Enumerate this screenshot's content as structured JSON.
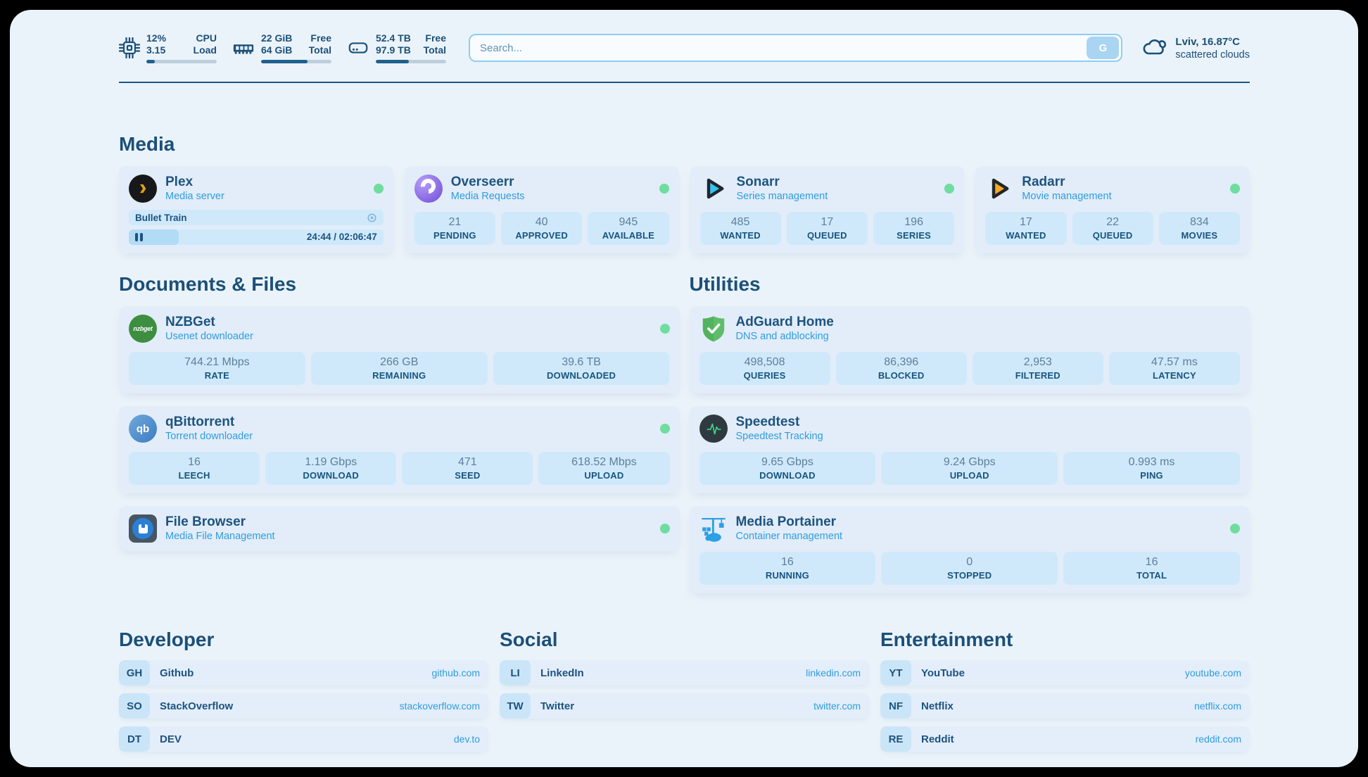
{
  "colors": {
    "accent": "#2f9ce0",
    "green": "#6fdd9f",
    "navy": "#1b5078"
  },
  "topbar": {
    "cpu": {
      "value_top": "12%",
      "value_bottom": "3.15",
      "label_top": "CPU",
      "label_bottom": "Load",
      "progress_pct": 12
    },
    "ram": {
      "value_top": "22 GiB",
      "value_bottom": "64 GiB",
      "label_top": "Free",
      "label_bottom": "Total",
      "progress_pct": 66
    },
    "disk": {
      "value_top": "52.4 TB",
      "value_bottom": "97.9 TB",
      "label_top": "Free",
      "label_bottom": "Total",
      "progress_pct": 47
    },
    "search": {
      "placeholder": "Search...",
      "button_label": "G"
    },
    "weather": {
      "location_temp": "Lviv, 16.87°C",
      "condition": "scattered clouds"
    }
  },
  "media": {
    "title": "Media",
    "plex": {
      "name": "Plex",
      "desc": "Media server",
      "now_playing": "Bullet Train",
      "time": "24:44 / 02:06:47",
      "progress_pct": 19.5
    },
    "overseerr": {
      "name": "Overseerr",
      "desc": "Media Requests",
      "stats": [
        {
          "value": "21",
          "label": "PENDING"
        },
        {
          "value": "40",
          "label": "APPROVED"
        },
        {
          "value": "945",
          "label": "AVAILABLE"
        }
      ]
    },
    "sonarr": {
      "name": "Sonarr",
      "desc": "Series management",
      "stats": [
        {
          "value": "485",
          "label": "WANTED"
        },
        {
          "value": "17",
          "label": "QUEUED"
        },
        {
          "value": "196",
          "label": "SERIES"
        }
      ]
    },
    "radarr": {
      "name": "Radarr",
      "desc": "Movie management",
      "stats": [
        {
          "value": "17",
          "label": "WANTED"
        },
        {
          "value": "22",
          "label": "QUEUED"
        },
        {
          "value": "834",
          "label": "MOVIES"
        }
      ]
    }
  },
  "documents": {
    "title": "Documents & Files",
    "nzbget": {
      "name": "NZBGet",
      "desc": "Usenet downloader",
      "icon_text": "nzbget",
      "stats": [
        {
          "value": "744.21 Mbps",
          "label": "RATE"
        },
        {
          "value": "266 GB",
          "label": "REMAINING"
        },
        {
          "value": "39.6 TB",
          "label": "DOWNLOADED"
        }
      ]
    },
    "qbittorrent": {
      "name": "qBittorrent",
      "desc": "Torrent downloader",
      "icon_text": "qb",
      "stats": [
        {
          "value": "16",
          "label": "LEECH"
        },
        {
          "value": "1.19 Gbps",
          "label": "DOWNLOAD"
        },
        {
          "value": "471",
          "label": "SEED"
        },
        {
          "value": "618.52 Mbps",
          "label": "UPLOAD"
        }
      ]
    },
    "filebrowser": {
      "name": "File Browser",
      "desc": "Media File Management"
    }
  },
  "utilities": {
    "title": "Utilities",
    "adguard": {
      "name": "AdGuard Home",
      "desc": "DNS and adblocking",
      "stats": [
        {
          "value": "498,508",
          "label": "QUERIES"
        },
        {
          "value": "86,396",
          "label": "BLOCKED"
        },
        {
          "value": "2,953",
          "label": "FILTERED"
        },
        {
          "value": "47.57 ms",
          "label": "LATENCY"
        }
      ]
    },
    "speedtest": {
      "name": "Speedtest",
      "desc": "Speedtest Tracking",
      "stats": [
        {
          "value": "9.65 Gbps",
          "label": "DOWNLOAD"
        },
        {
          "value": "9.24 Gbps",
          "label": "UPLOAD"
        },
        {
          "value": "0.993 ms",
          "label": "PING"
        }
      ]
    },
    "portainer": {
      "name": "Media Portainer",
      "desc": "Container management",
      "stats": [
        {
          "value": "16",
          "label": "RUNNING"
        },
        {
          "value": "0",
          "label": "STOPPED"
        },
        {
          "value": "16",
          "label": "TOTAL"
        }
      ]
    }
  },
  "developer": {
    "title": "Developer",
    "items": [
      {
        "abbr": "GH",
        "name": "Github",
        "url": "github.com"
      },
      {
        "abbr": "SO",
        "name": "StackOverflow",
        "url": "stackoverflow.com"
      },
      {
        "abbr": "DT",
        "name": "DEV",
        "url": "dev.to"
      }
    ]
  },
  "social": {
    "title": "Social",
    "items": [
      {
        "abbr": "LI",
        "name": "LinkedIn",
        "url": "linkedin.com"
      },
      {
        "abbr": "TW",
        "name": "Twitter",
        "url": "twitter.com"
      }
    ]
  },
  "entertainment": {
    "title": "Entertainment",
    "items": [
      {
        "abbr": "YT",
        "name": "YouTube",
        "url": "youtube.com"
      },
      {
        "abbr": "NF",
        "name": "Netflix",
        "url": "netflix.com"
      },
      {
        "abbr": "RE",
        "name": "Reddit",
        "url": "reddit.com"
      }
    ]
  }
}
